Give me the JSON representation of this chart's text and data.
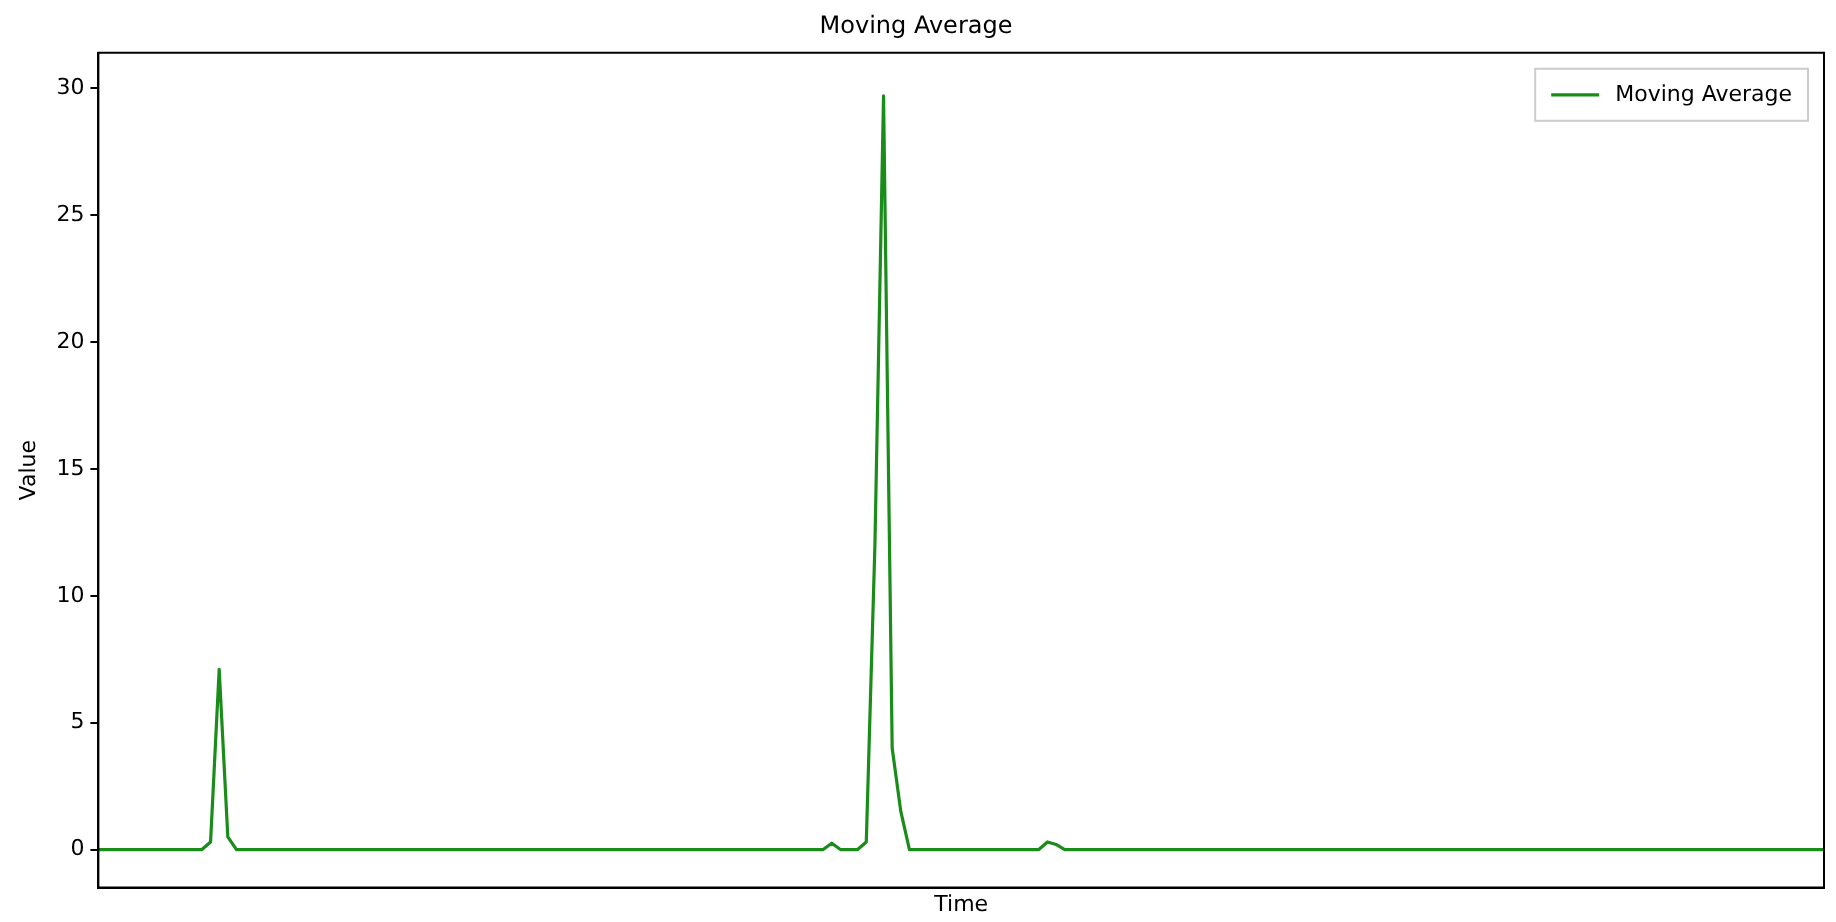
{
  "chart_data": {
    "type": "line",
    "title": "Moving Average",
    "xlabel": "Time",
    "ylabel": "Value",
    "categories": [
      null,
      null,
      null,
      null,
      null,
      null,
      null,
      null,
      null,
      null,
      null,
      null,
      null,
      null,
      null,
      null,
      null,
      null,
      null,
      null,
      null,
      null,
      null,
      null,
      null,
      null,
      null,
      null,
      null,
      null,
      null,
      null,
      null,
      null,
      null,
      null,
      null,
      null,
      null,
      null,
      null,
      null,
      null,
      null,
      null,
      null,
      null,
      null,
      null,
      null,
      null,
      null,
      null,
      null,
      null,
      null,
      null,
      null,
      null,
      null,
      null,
      null,
      null,
      null,
      null,
      null,
      null,
      null,
      null,
      null,
      null,
      null,
      null,
      null,
      null,
      null,
      null,
      null,
      null,
      null,
      null,
      null,
      null,
      null,
      null,
      null,
      null,
      null,
      null,
      null,
      null,
      null,
      null,
      null,
      null,
      null,
      null,
      null,
      null,
      null,
      null,
      null,
      null,
      null,
      null,
      null,
      null,
      null,
      null,
      null,
      null,
      null,
      null,
      null,
      null,
      null,
      null,
      null,
      null,
      null,
      null,
      null,
      null,
      null,
      null,
      null,
      null,
      null,
      null,
      null,
      null,
      null,
      null,
      null,
      null,
      null,
      null,
      null,
      null,
      null,
      null,
      null,
      null,
      null,
      null,
      null,
      null,
      null,
      null,
      null,
      null,
      null,
      null,
      null,
      null,
      null,
      null,
      null,
      null,
      null,
      null,
      null,
      null,
      null,
      null,
      null,
      null,
      null,
      null,
      null,
      null,
      null,
      null,
      null,
      null,
      null,
      null,
      null,
      null,
      null,
      null,
      null,
      null,
      null,
      null,
      null,
      null,
      null,
      null,
      null,
      null,
      null,
      null,
      null,
      null,
      null,
      null,
      null,
      null,
      null,
      null
    ],
    "series": [
      {
        "name": "Moving Average",
        "color": "#1a8c1a",
        "values": [
          0,
          0,
          0,
          0,
          0,
          0,
          0,
          0,
          0,
          0,
          0,
          0,
          0,
          0.3,
          7.1,
          0.5,
          0,
          0,
          0,
          0,
          0,
          0,
          0,
          0,
          0,
          0,
          0,
          0,
          0,
          0,
          0,
          0,
          0,
          0,
          0,
          0,
          0,
          0,
          0,
          0,
          0,
          0,
          0,
          0,
          0,
          0,
          0,
          0,
          0,
          0,
          0,
          0,
          0,
          0,
          0,
          0,
          0,
          0,
          0,
          0,
          0,
          0,
          0,
          0,
          0,
          0,
          0,
          0,
          0,
          0,
          0,
          0,
          0,
          0,
          0,
          0,
          0,
          0,
          0,
          0,
          0,
          0,
          0,
          0,
          0,
          0.25,
          0,
          0,
          0,
          0.3,
          12,
          29.7,
          4,
          1.5,
          0,
          0,
          0,
          0,
          0,
          0,
          0,
          0,
          0,
          0,
          0,
          0,
          0,
          0,
          0,
          0,
          0.3,
          0.2,
          0,
          0,
          0,
          0,
          0,
          0,
          0,
          0,
          0,
          0,
          0,
          0,
          0,
          0,
          0,
          0,
          0,
          0,
          0,
          0,
          0,
          0,
          0,
          0,
          0,
          0,
          0,
          0,
          0,
          0,
          0,
          0,
          0,
          0,
          0,
          0,
          0,
          0,
          0,
          0,
          0,
          0,
          0,
          0,
          0,
          0,
          0,
          0,
          0,
          0,
          0,
          0,
          0,
          0,
          0,
          0,
          0,
          0,
          0,
          0,
          0,
          0,
          0,
          0,
          0,
          0,
          0,
          0,
          0,
          0,
          0,
          0,
          0,
          0,
          0,
          0,
          0,
          0,
          0,
          0,
          0,
          0,
          0,
          0,
          0,
          0,
          0,
          0,
          0
        ]
      }
    ],
    "ylim": [
      -1.5,
      31.4
    ],
    "yticks": [
      0,
      5,
      10,
      15,
      20,
      25,
      30
    ],
    "legend": "top right",
    "marker": "none",
    "line_style": "solid",
    "tick_labels": "y"
  }
}
